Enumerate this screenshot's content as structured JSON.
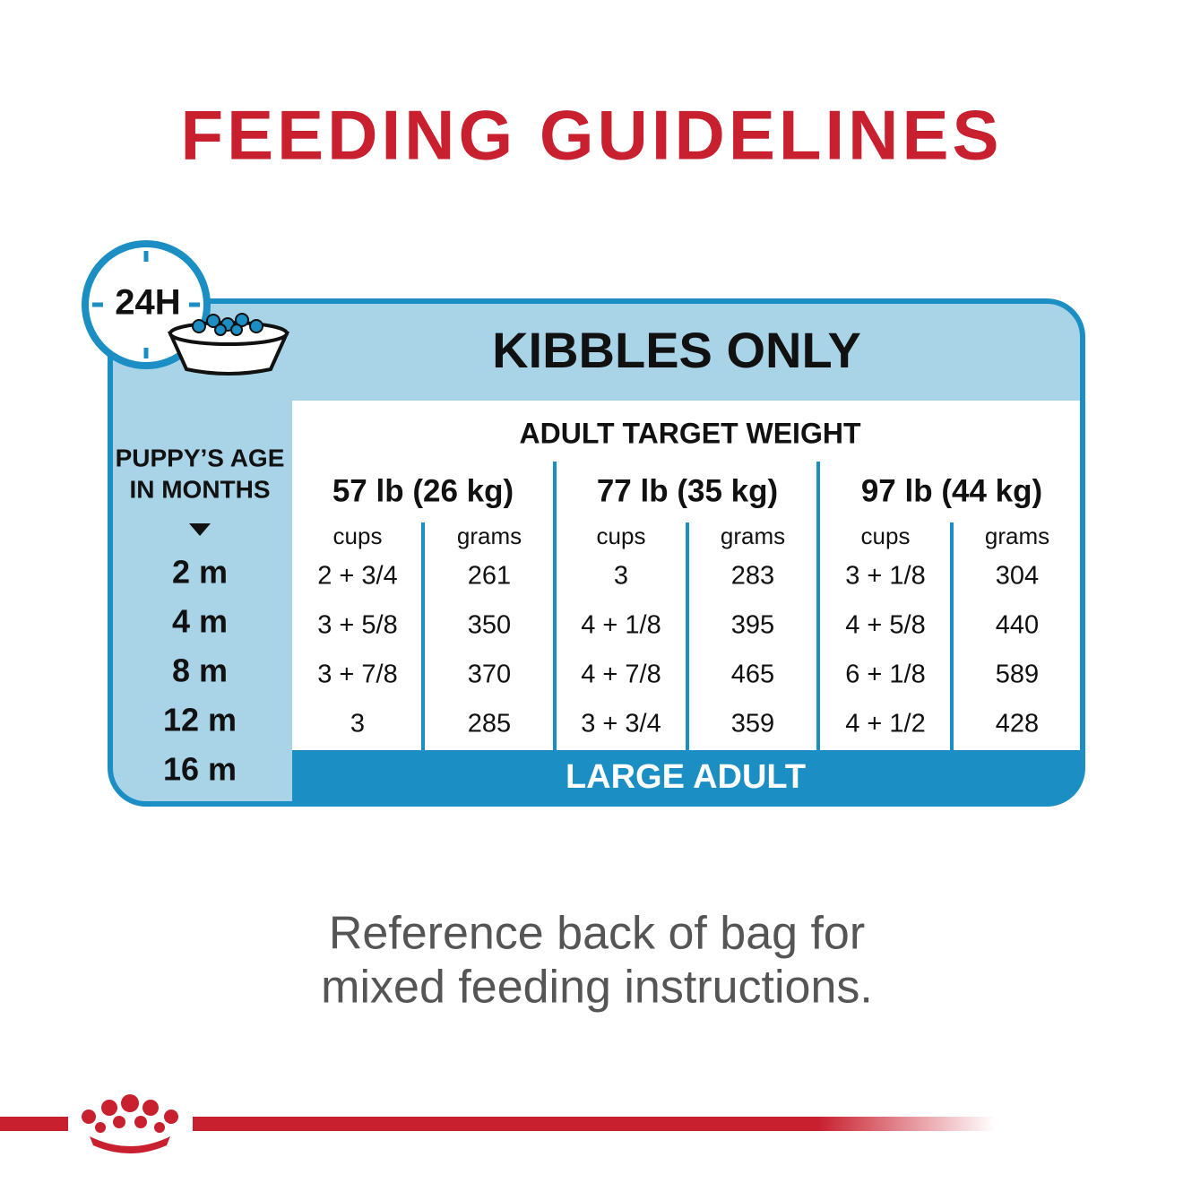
{
  "title": "FEEDING GUIDELINES",
  "badge": "24H",
  "table": {
    "title": "KIBBLES ONLY",
    "age_header": [
      "PUPPY’S AGE",
      "IN MONTHS"
    ],
    "weight_header": "ADULT TARGET WEIGHT",
    "weights": [
      "57 lb (26 kg)",
      "77 lb (35 kg)",
      "97 lb (44 kg)"
    ],
    "units": [
      "cups",
      "grams",
      "cups",
      "grams",
      "cups",
      "grams"
    ],
    "ages": [
      "2 m",
      "4 m",
      "8 m",
      "12 m",
      "16 m"
    ],
    "rows": [
      [
        "2 + 3/4",
        "261",
        "3",
        "283",
        "3 + 1/8",
        "304"
      ],
      [
        "3 + 5/8",
        "350",
        "4 + 1/8",
        "395",
        "4 + 5/8",
        "440"
      ],
      [
        "3 + 7/8",
        "370",
        "4 + 7/8",
        "465",
        "6 + 1/8",
        "589"
      ],
      [
        "3",
        "285",
        "3 + 3/4",
        "359",
        "4 + 1/2",
        "428"
      ]
    ],
    "band": "LARGE ADULT"
  },
  "note": [
    "Reference back of bag for",
    "mixed feeding instructions."
  ]
}
